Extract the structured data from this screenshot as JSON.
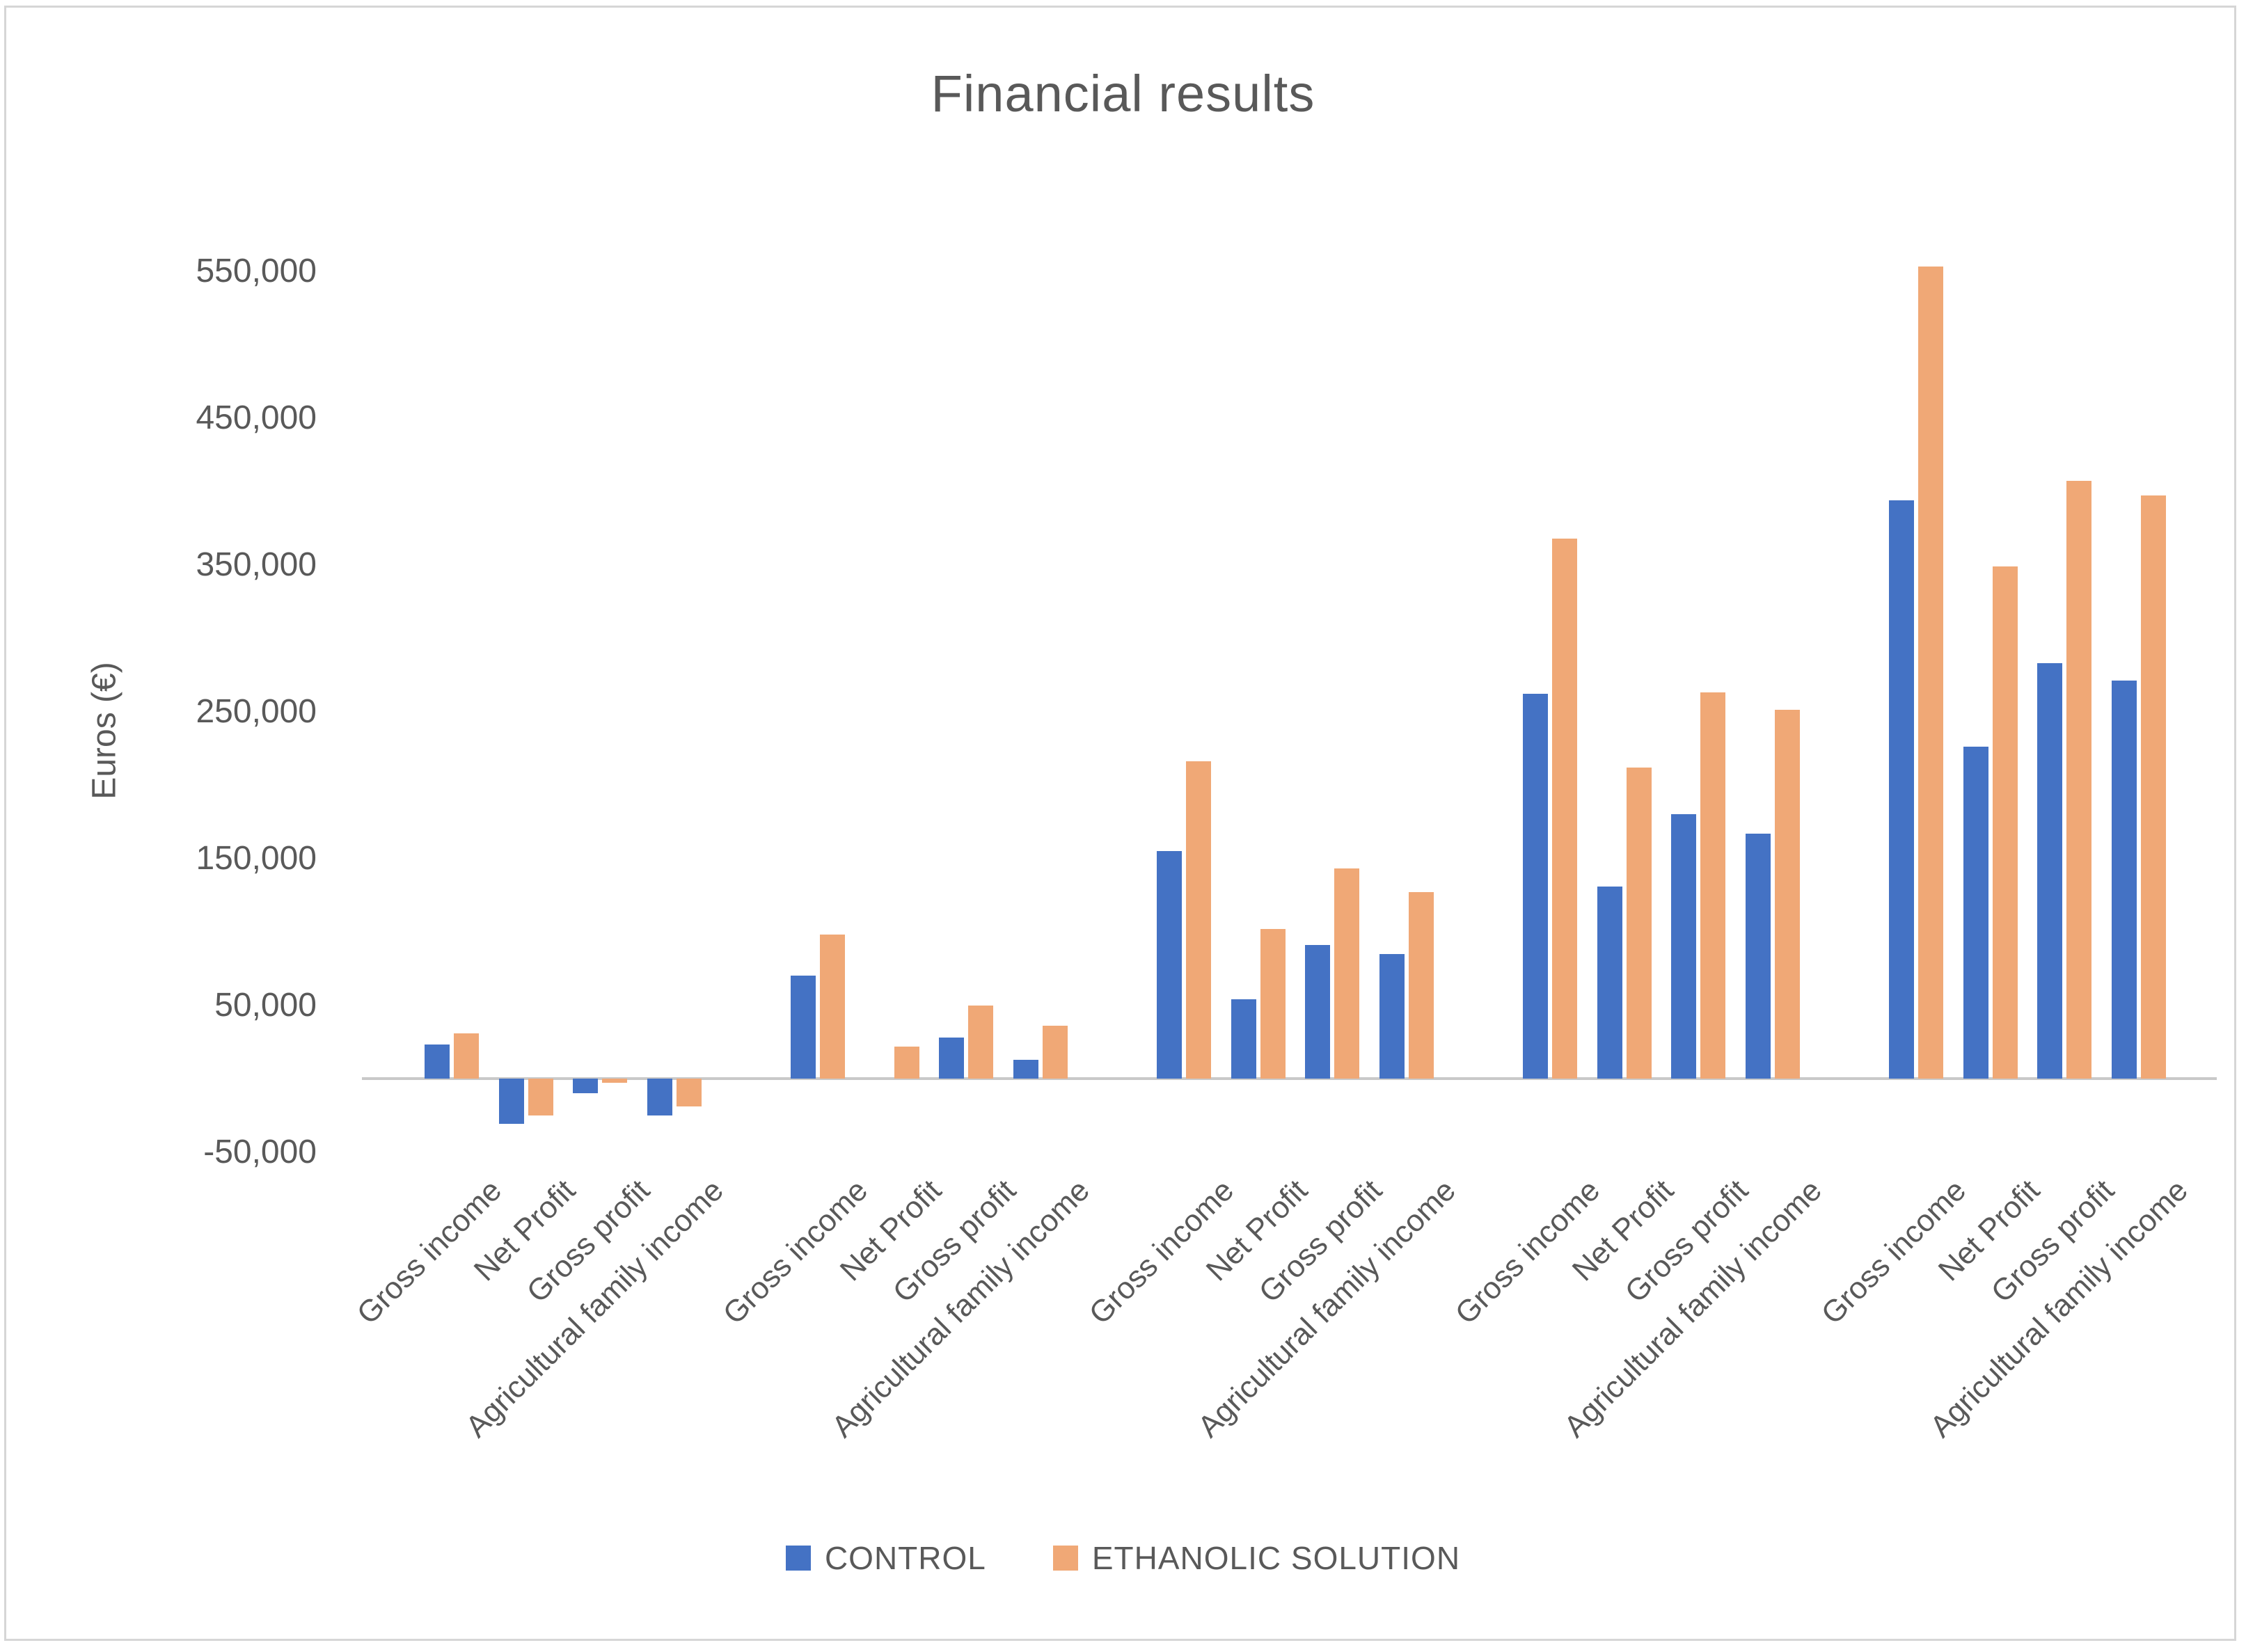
{
  "page": {
    "title": "Financial results"
  },
  "legend": [
    {
      "label": "CONTROL",
      "color": "#4472C4"
    },
    {
      "label": "ETHANOLIC SOLUTION",
      "color": "#F0A876"
    }
  ],
  "chart_data": {
    "type": "bar",
    "title": "Financial results",
    "xlabel": "",
    "ylabel": "Euros (€)",
    "ylim": [
      -50000,
      550000
    ],
    "grid": false,
    "legend_position": "bottom",
    "y_ticks": [
      550000,
      450000,
      350000,
      250000,
      150000,
      50000,
      -50000
    ],
    "y_tick_labels": [
      "550,000",
      "450,000",
      "350,000",
      "250,000",
      "150,000",
      "50,000",
      "-50,000"
    ],
    "categories": [
      "Gross income",
      "Net Profit",
      "Gross profit",
      "Agricultural family income"
    ],
    "series": [
      {
        "name": "CONTROL",
        "color": "#4472C4"
      },
      {
        "name": "ETHANOLIC SOLUTION",
        "color": "#F0A876"
      }
    ],
    "groups": [
      {
        "control": [
          23000,
          -31000,
          -10000,
          -25000
        ],
        "ethanolic_solution": [
          31000,
          -25000,
          -3000,
          -19000
        ]
      },
      {
        "control": [
          70000,
          0,
          28000,
          13000
        ],
        "ethanolic_solution": [
          98000,
          22000,
          50000,
          36000
        ]
      },
      {
        "control": [
          155000,
          54000,
          91000,
          85000
        ],
        "ethanolic_solution": [
          216000,
          102000,
          143000,
          127000
        ]
      },
      {
        "control": [
          262000,
          131000,
          180000,
          167000
        ],
        "ethanolic_solution": [
          368000,
          212000,
          263000,
          251000
        ]
      },
      {
        "control": [
          394000,
          226000,
          283000,
          271000
        ],
        "ethanolic_solution": [
          553000,
          349000,
          407000,
          397000
        ]
      }
    ]
  }
}
